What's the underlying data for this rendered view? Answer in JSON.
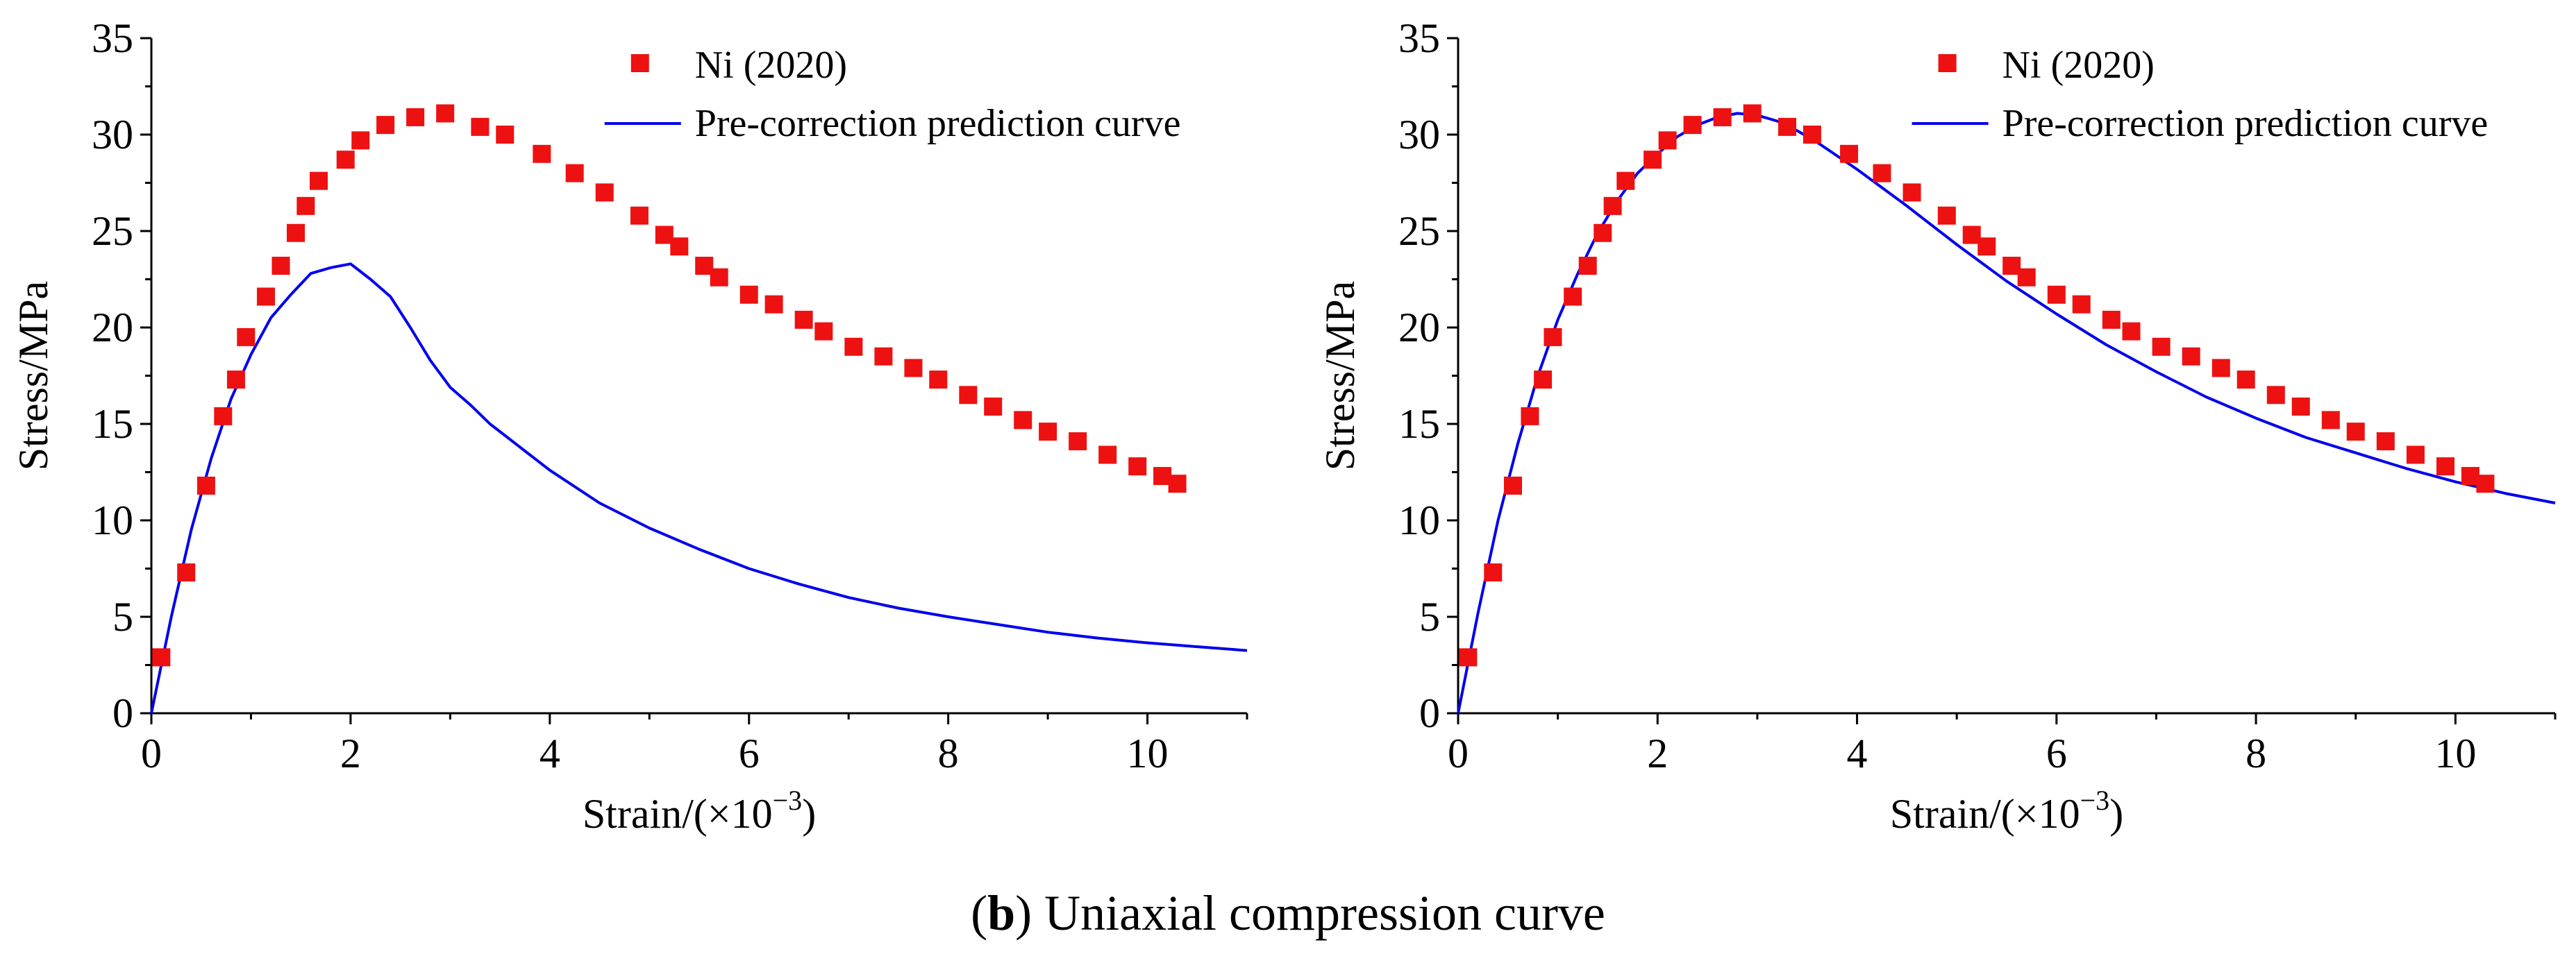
{
  "caption": {
    "letter": "b",
    "text": " Uniaxial compression curve"
  },
  "colors": {
    "points": "#ee1111",
    "curve": "#0000ee",
    "axes": "#000000"
  },
  "chart_data": [
    {
      "type": "scatter",
      "panel": "left",
      "xlabel": "Strain/(×10",
      "xlabel_sup": "−3",
      "xlabel_end": ")",
      "ylabel": "Stress/MPa",
      "xlim": [
        0,
        11
      ],
      "ylim": [
        0,
        35
      ],
      "xticks": [
        0,
        2,
        4,
        6,
        8,
        10
      ],
      "yticks": [
        0,
        5,
        10,
        15,
        20,
        25,
        30,
        35
      ],
      "legend_position": "top-right",
      "series": [
        {
          "name": "Ni (2020)",
          "kind": "markers",
          "points": [
            [
              0.1,
              2.9
            ],
            [
              0.35,
              7.3
            ],
            [
              0.55,
              11.8
            ],
            [
              0.72,
              15.4
            ],
            [
              0.85,
              17.3
            ],
            [
              0.95,
              19.5
            ],
            [
              1.15,
              21.6
            ],
            [
              1.3,
              23.2
            ],
            [
              1.45,
              24.9
            ],
            [
              1.55,
              26.3
            ],
            [
              1.68,
              27.6
            ],
            [
              1.95,
              28.7
            ],
            [
              2.1,
              29.7
            ],
            [
              2.35,
              30.5
            ],
            [
              2.65,
              30.9
            ],
            [
              2.95,
              31.1
            ],
            [
              3.3,
              30.4
            ],
            [
              3.55,
              30.0
            ],
            [
              3.92,
              29.0
            ],
            [
              4.25,
              28.0
            ],
            [
              4.55,
              27.0
            ],
            [
              4.9,
              25.8
            ],
            [
              5.15,
              24.8
            ],
            [
              5.3,
              24.2
            ],
            [
              5.55,
              23.2
            ],
            [
              5.7,
              22.6
            ],
            [
              6.0,
              21.7
            ],
            [
              6.25,
              21.2
            ],
            [
              6.55,
              20.4
            ],
            [
              6.75,
              19.8
            ],
            [
              7.05,
              19.0
            ],
            [
              7.35,
              18.5
            ],
            [
              7.65,
              17.9
            ],
            [
              7.9,
              17.3
            ],
            [
              8.2,
              16.5
            ],
            [
              8.45,
              15.9
            ],
            [
              8.75,
              15.2
            ],
            [
              9.0,
              14.6
            ],
            [
              9.3,
              14.1
            ],
            [
              9.6,
              13.4
            ],
            [
              9.9,
              12.8
            ],
            [
              10.15,
              12.3
            ],
            [
              10.3,
              11.9
            ]
          ]
        },
        {
          "name": "Pre-correction prediction curve",
          "kind": "line",
          "points": [
            [
              0,
              0
            ],
            [
              0.2,
              5.0
            ],
            [
              0.4,
              9.5
            ],
            [
              0.6,
              13.2
            ],
            [
              0.8,
              16.3
            ],
            [
              1.0,
              18.6
            ],
            [
              1.2,
              20.5
            ],
            [
              1.4,
              21.7
            ],
            [
              1.6,
              22.8
            ],
            [
              1.8,
              23.1
            ],
            [
              2.0,
              23.3
            ],
            [
              2.2,
              22.5
            ],
            [
              2.4,
              21.6
            ],
            [
              2.6,
              20.0
            ],
            [
              2.8,
              18.3
            ],
            [
              3.0,
              16.9
            ],
            [
              3.2,
              16.0
            ],
            [
              3.4,
              15.0
            ],
            [
              3.6,
              14.2
            ],
            [
              3.8,
              13.4
            ],
            [
              4.0,
              12.6
            ],
            [
              4.5,
              10.9
            ],
            [
              5.0,
              9.6
            ],
            [
              5.5,
              8.5
            ],
            [
              6.0,
              7.5
            ],
            [
              6.5,
              6.7
            ],
            [
              7.0,
              6.0
            ],
            [
              7.5,
              5.45
            ],
            [
              8.0,
              5.0
            ],
            [
              8.5,
              4.6
            ],
            [
              9.0,
              4.2
            ],
            [
              9.5,
              3.9
            ],
            [
              10.0,
              3.65
            ],
            [
              10.5,
              3.45
            ],
            [
              11.0,
              3.25
            ]
          ]
        }
      ]
    },
    {
      "type": "scatter",
      "panel": "right",
      "xlabel": "Strain/(×10",
      "xlabel_sup": "−3",
      "xlabel_end": ")",
      "ylabel": "Stress/MPa",
      "xlim": [
        0,
        11
      ],
      "ylim": [
        0,
        35
      ],
      "xticks": [
        0,
        2,
        4,
        6,
        8,
        10
      ],
      "yticks": [
        0,
        5,
        10,
        15,
        20,
        25,
        30,
        35
      ],
      "legend_position": "top-right",
      "series": [
        {
          "name": "Ni (2020)",
          "kind": "markers",
          "points": [
            [
              0.1,
              2.9
            ],
            [
              0.35,
              7.3
            ],
            [
              0.55,
              11.8
            ],
            [
              0.72,
              15.4
            ],
            [
              0.85,
              17.3
            ],
            [
              0.95,
              19.5
            ],
            [
              1.15,
              21.6
            ],
            [
              1.3,
              23.2
            ],
            [
              1.45,
              24.9
            ],
            [
              1.55,
              26.3
            ],
            [
              1.68,
              27.6
            ],
            [
              1.95,
              28.7
            ],
            [
              2.1,
              29.7
            ],
            [
              2.35,
              30.5
            ],
            [
              2.65,
              30.9
            ],
            [
              2.95,
              31.1
            ],
            [
              3.3,
              30.4
            ],
            [
              3.55,
              30.0
            ],
            [
              3.92,
              29.0
            ],
            [
              4.25,
              28.0
            ],
            [
              4.55,
              27.0
            ],
            [
              4.9,
              25.8
            ],
            [
              5.15,
              24.8
            ],
            [
              5.3,
              24.2
            ],
            [
              5.55,
              23.2
            ],
            [
              5.7,
              22.6
            ],
            [
              6.0,
              21.7
            ],
            [
              6.25,
              21.2
            ],
            [
              6.55,
              20.4
            ],
            [
              6.75,
              19.8
            ],
            [
              7.05,
              19.0
            ],
            [
              7.35,
              18.5
            ],
            [
              7.65,
              17.9
            ],
            [
              7.9,
              17.3
            ],
            [
              8.2,
              16.5
            ],
            [
              8.45,
              15.9
            ],
            [
              8.75,
              15.2
            ],
            [
              9.0,
              14.6
            ],
            [
              9.3,
              14.1
            ],
            [
              9.6,
              13.4
            ],
            [
              9.9,
              12.8
            ],
            [
              10.15,
              12.3
            ],
            [
              10.3,
              11.9
            ]
          ]
        },
        {
          "name": "Pre-correction prediction curve",
          "kind": "line",
          "points": [
            [
              0,
              0
            ],
            [
              0.2,
              5.2
            ],
            [
              0.4,
              10.0
            ],
            [
              0.6,
              14.0
            ],
            [
              0.8,
              17.5
            ],
            [
              1.0,
              20.4
            ],
            [
              1.2,
              22.8
            ],
            [
              1.4,
              24.9
            ],
            [
              1.6,
              26.6
            ],
            [
              1.8,
              28.0
            ],
            [
              2.0,
              29.0
            ],
            [
              2.2,
              29.9
            ],
            [
              2.4,
              30.5
            ],
            [
              2.6,
              30.9
            ],
            [
              2.8,
              31.1
            ],
            [
              3.0,
              31.0
            ],
            [
              3.2,
              30.7
            ],
            [
              3.4,
              30.2
            ],
            [
              3.6,
              29.6
            ],
            [
              3.8,
              28.9
            ],
            [
              4.0,
              28.2
            ],
            [
              4.5,
              26.3
            ],
            [
              5.0,
              24.3
            ],
            [
              5.5,
              22.4
            ],
            [
              6.0,
              20.7
            ],
            [
              6.5,
              19.1
            ],
            [
              7.0,
              17.7
            ],
            [
              7.5,
              16.4
            ],
            [
              8.0,
              15.3
            ],
            [
              8.5,
              14.3
            ],
            [
              9.0,
              13.5
            ],
            [
              9.5,
              12.7
            ],
            [
              10.0,
              12.0
            ],
            [
              10.5,
              11.4
            ],
            [
              11.0,
              10.9
            ]
          ]
        }
      ]
    }
  ]
}
